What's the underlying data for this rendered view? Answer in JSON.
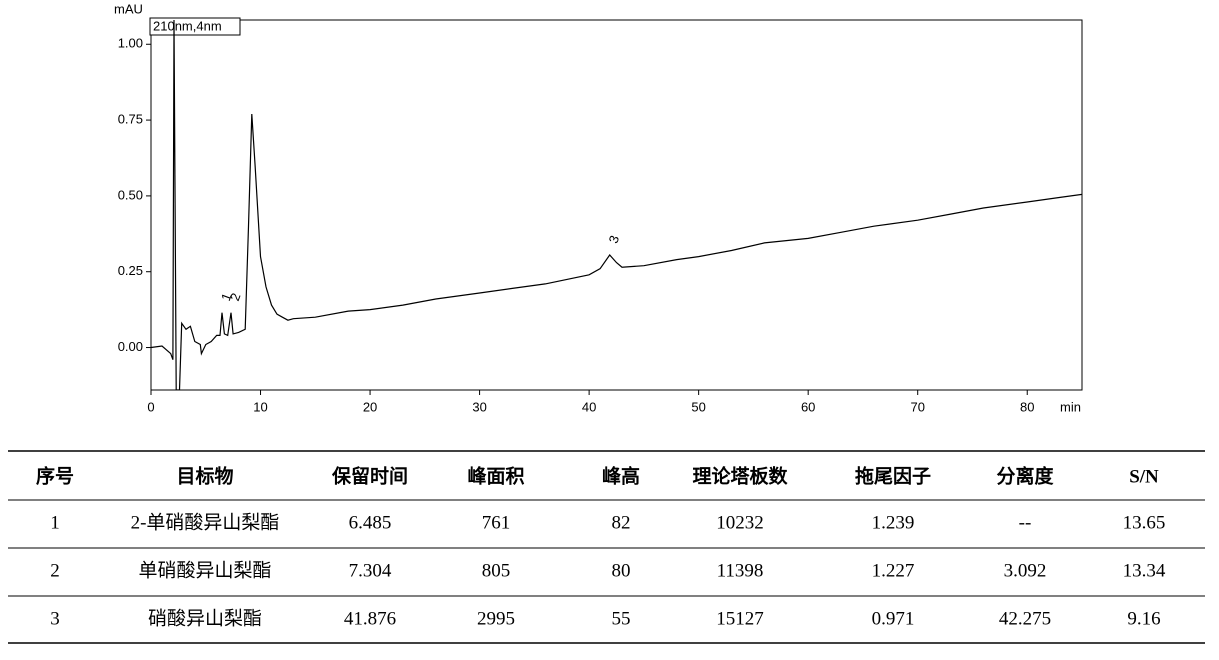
{
  "chart_data": {
    "type": "line",
    "y_label": "mAU",
    "x_label": "min",
    "legend": "210nm,4nm",
    "color": "#000000",
    "x": [
      0,
      1,
      1.8,
      2.0,
      2.1,
      2.3,
      2.6,
      2.8,
      3.2,
      3.6,
      4.0,
      4.5,
      4.6,
      5.0,
      5.5,
      6.0,
      6.3,
      6.485,
      6.7,
      7.0,
      7.304,
      7.5,
      8.0,
      8.6,
      8.9,
      9.2,
      9.5,
      10.0,
      10.5,
      11,
      11.5,
      12,
      12.5,
      13,
      15,
      18,
      20,
      23,
      26,
      30,
      33,
      36,
      40,
      41,
      41.876,
      42.5,
      43,
      45,
      48,
      50,
      53,
      56,
      60,
      63,
      66,
      70,
      73,
      76,
      80,
      83,
      85
    ],
    "values": [
      0.0,
      0.005,
      -0.02,
      -0.04,
      1.08,
      -0.14,
      -0.14,
      0.08,
      0.06,
      0.07,
      0.02,
      0.01,
      -0.02,
      0.01,
      0.02,
      0.04,
      0.04,
      0.115,
      0.045,
      0.04,
      0.115,
      0.045,
      0.05,
      0.06,
      0.4,
      0.77,
      0.6,
      0.3,
      0.2,
      0.14,
      0.11,
      0.1,
      0.09,
      0.095,
      0.1,
      0.12,
      0.125,
      0.14,
      0.16,
      0.18,
      0.195,
      0.21,
      0.24,
      0.26,
      0.305,
      0.28,
      0.265,
      0.27,
      0.29,
      0.3,
      0.32,
      0.345,
      0.36,
      0.38,
      0.4,
      0.42,
      0.44,
      0.46,
      0.48,
      0.495,
      0.505
    ],
    "xlim": [
      0,
      85
    ],
    "ylim": [
      -0.14,
      1.08
    ],
    "xticks": [
      0,
      10,
      20,
      30,
      40,
      50,
      60,
      70,
      80
    ],
    "yticks": [
      {
        "value": 0,
        "label": "0.00"
      },
      {
        "value": 0.25,
        "label": "0.25"
      },
      {
        "value": 0.5,
        "label": "0.50"
      },
      {
        "value": 0.75,
        "label": "0.75"
      },
      {
        "value": 1,
        "label": "1.00"
      }
    ],
    "peak_labels": [
      {
        "label": "1",
        "x": 6.485
      },
      {
        "label": "2",
        "x": 7.304
      },
      {
        "label": "3",
        "x": 41.876
      }
    ]
  },
  "table": {
    "header": [
      "序号",
      "目标物",
      "保留时间",
      "峰面积",
      "峰高",
      "理论塔板数",
      "拖尾因子",
      "分离度",
      "S/N"
    ],
    "rows": [
      [
        "1",
        "2-单硝酸异山梨酯",
        "6.485",
        "761",
        "82",
        "10232",
        "1.239",
        "--",
        "13.65"
      ],
      [
        "2",
        "单硝酸异山梨酯",
        "7.304",
        "805",
        "80",
        "11398",
        "1.227",
        "3.092",
        "13.34"
      ],
      [
        "3",
        "硝酸异山梨酯",
        "41.876",
        "2995",
        "55",
        "15127",
        "0.971",
        "42.275",
        "9.16"
      ]
    ]
  }
}
